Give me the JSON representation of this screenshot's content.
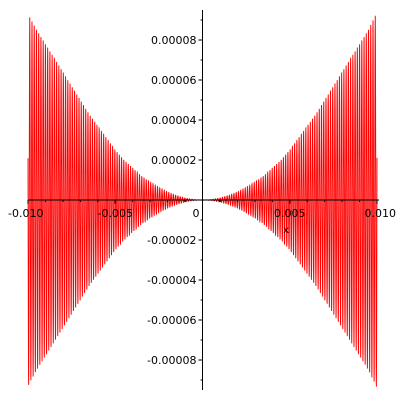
{
  "chart_data": {
    "type": "line",
    "title": "",
    "xlabel": "x",
    "ylabel": "",
    "xlim": [
      -0.01,
      0.01
    ],
    "ylim": [
      -0.0001,
      0.0001
    ],
    "grid": false,
    "legend": "none",
    "x_ticks": [
      {
        "value": -0.01,
        "label": "-0.010"
      },
      {
        "value": -0.005,
        "label": "-0.005"
      },
      {
        "value": 0,
        "label": "0"
      },
      {
        "value": 0.005,
        "label": "0.005"
      },
      {
        "value": 0.01,
        "label": "0.010"
      }
    ],
    "y_ticks": [
      {
        "value": 8e-05,
        "label": "0.00008"
      },
      {
        "value": 6e-05,
        "label": "0.00006"
      },
      {
        "value": 4e-05,
        "label": "0.00004"
      },
      {
        "value": 2e-05,
        "label": "0.00002"
      },
      {
        "value": -2e-05,
        "label": "-0.00002"
      },
      {
        "value": -4e-05,
        "label": "-0.00004"
      },
      {
        "value": -6e-05,
        "label": "-0.00006"
      },
      {
        "value": -8e-05,
        "label": "-0.00008"
      }
    ],
    "series": [
      {
        "color": "#ff0000",
        "x": [
          -0.01,
          -0.0095,
          -0.009,
          -0.0085,
          -0.008,
          -0.0075,
          -0.007,
          -0.0065,
          -0.006,
          -0.0055,
          -0.005,
          -0.0045,
          -0.004,
          -0.0035,
          -0.003,
          -0.0025,
          -0.002,
          -0.0015,
          -0.001,
          -0.0005,
          0,
          0.0005,
          0.001,
          0.0015,
          0.002,
          0.0025,
          0.003,
          0.0035,
          0.004,
          0.0045,
          0.005,
          0.0055,
          0.006,
          0.0065,
          0.007,
          0.0075,
          0.008,
          0.0085,
          0.009,
          0.0095,
          0.01
        ],
        "y_envelope": [
          9.3e-05,
          8.5e-05,
          7.8e-05,
          7.1e-05,
          6.4e-05,
          5.7e-05,
          5e-05,
          4.3e-05,
          3.7e-05,
          3.1e-05,
          2.5e-05,
          2e-05,
          1.6e-05,
          1.2e-05,
          9e-06,
          6.3e-06,
          4e-06,
          2.3e-06,
          1e-06,
          2.5e-07,
          0,
          2.5e-07,
          1e-06,
          2.3e-06,
          4e-06,
          6.3e-06,
          9e-06,
          1.2e-05,
          1.6e-05,
          2e-05,
          2.5e-05,
          3.1e-05,
          3.7e-05,
          4.3e-05,
          5e-05,
          5.7e-05,
          6.4e-05,
          7.1e-05,
          7.8e-05,
          8.5e-05,
          9.4e-05
        ]
      }
    ]
  }
}
